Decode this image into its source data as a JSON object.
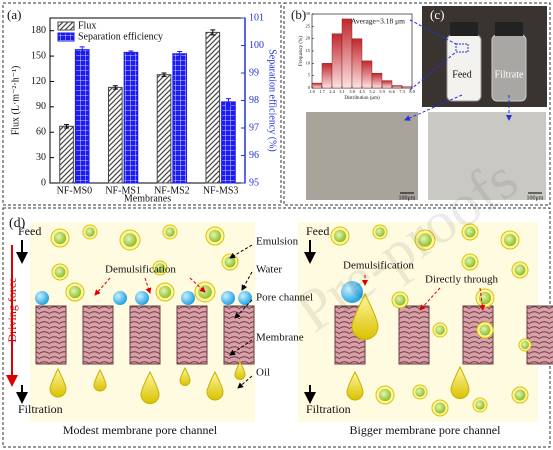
{
  "chart_data": [
    {
      "type": "bar",
      "categories": [
        "NF-MS0",
        "NF-MS1",
        "NF-MS2",
        "NF-MS3"
      ],
      "series": [
        {
          "name": "Flux",
          "color": "#444444",
          "values": [
            67,
            113,
            128,
            178
          ],
          "errors": [
            2,
            2,
            2,
            3
          ]
        },
        {
          "name": "Separation efficiency",
          "color": "#1c1cf0",
          "axis": "y2",
          "values": [
            99.85,
            99.75,
            99.7,
            97.95
          ],
          "errors": [
            0.1,
            0.05,
            0.08,
            0.12
          ]
        }
      ],
      "xlabel": "Membranes",
      "ylabel": "Flux (L·m⁻²·h⁻¹)",
      "y2label": "Separation efficiency (%)",
      "ylim": [
        0,
        195
      ],
      "yticks": [
        0,
        30,
        60,
        90,
        120,
        150,
        180
      ],
      "y2lim": [
        95,
        101
      ],
      "y2ticks": [
        95,
        96,
        97,
        98,
        99,
        100,
        101
      ],
      "legend": "upper left"
    },
    {
      "type": "histogram",
      "bins": [
        1.0,
        1.7,
        2.4,
        3.1,
        3.8,
        4.5,
        5.2,
        5.9,
        6.6,
        7.3,
        8.0
      ],
      "values": [
        2,
        10,
        22,
        28,
        20,
        11,
        6,
        3,
        1,
        0.5
      ],
      "color": "#c0282d",
      "xticks": [
        {
          "value": 1,
          "label": "1.0"
        },
        1.7,
        2.4,
        3.1,
        3.8,
        4.5,
        5.2,
        5.9,
        6.6,
        7.3,
        {
          "value": 8,
          "label": "8.0"
        }
      ],
      "ylim": [
        0,
        30
      ],
      "yticks": [
        0,
        5,
        10,
        15,
        20,
        25,
        30
      ],
      "xlabel": "Distribution (μm)",
      "ylabel": "Frequency (%)",
      "annotation": "Average=3.18 μm"
    }
  ],
  "panels": {
    "a": "(a)",
    "b": "(b)",
    "c": "(c)",
    "d": "(d)"
  },
  "photo": {
    "feed": "Feed",
    "filtrate": "Filtrate",
    "scale_left": "100μm",
    "scale_right": "100μm"
  },
  "diagram": {
    "driving_force": "Driving force",
    "left": {
      "feed": "Feed",
      "filtration": "Filtration",
      "demulsification": "Demulsification",
      "caption": "Modest membrane pore channel",
      "emulsion": "Emulsion",
      "water": "Water",
      "pore_channel": "Pore channel",
      "membrane": "Membrane",
      "oil": "Oil"
    },
    "right": {
      "feed": "Feed",
      "filtration": "Filtration",
      "demulsification": "Demulsification",
      "directly_through": "Directly through",
      "caption": "Bigger membrane pore channel"
    }
  },
  "watermark": "Pre-proofs"
}
